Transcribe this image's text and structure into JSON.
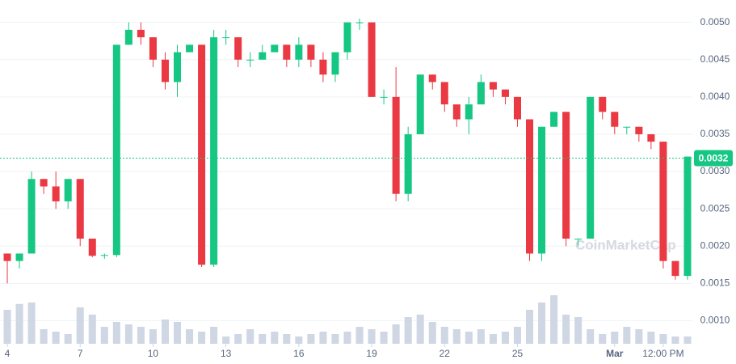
{
  "chart_data": {
    "type": "candlestick",
    "watermark": "CoinMarketCap",
    "up_color": "#16c784",
    "down_color": "#ea3943",
    "volume_color": "#cfd6e4",
    "grid": true,
    "x": [
      0,
      0.5,
      1,
      1.5,
      2,
      2.5,
      3,
      3.5,
      4,
      4.5,
      5,
      5.5,
      6,
      6.5,
      7,
      7.5,
      8,
      8.5,
      9,
      9.5,
      10,
      10.5,
      11,
      11.5,
      12,
      12.5,
      13,
      13.5,
      14,
      14.5,
      15,
      15.5,
      16,
      16.5,
      17,
      17.5,
      18,
      18.5,
      19,
      19.5,
      20,
      20.5,
      21,
      21.5,
      22,
      22.5,
      23,
      23.5,
      24,
      24.5,
      25,
      25.5,
      26,
      26.5,
      27,
      27.5,
      28
    ],
    "open": [
      0.0019,
      0.0018,
      0.0019,
      0.0029,
      0.0028,
      0.0026,
      0.0029,
      0.0021,
      0.00187,
      0.00188,
      0.0047,
      0.0049,
      0.0048,
      0.0045,
      0.0042,
      0.0046,
      0.0047,
      0.00175,
      0.0048,
      0.0048,
      0.0045,
      0.0045,
      0.0046,
      0.0047,
      0.0045,
      0.0047,
      0.0045,
      0.0043,
      0.0046,
      0.005,
      0.005,
      0.004,
      0.004,
      0.0027,
      0.0035,
      0.0043,
      0.0042,
      0.0039,
      0.0037,
      0.0039,
      0.0042,
      0.0041,
      0.004,
      0.0037,
      0.0019,
      0.0036,
      0.0038,
      0.0021,
      0.0021,
      0.004,
      0.0038,
      0.0036,
      0.0036,
      0.0035,
      0.0034,
      0.0018,
      0.0016
    ],
    "high": [
      0.0019,
      0.0019,
      0.003,
      0.0029,
      0.003,
      0.0029,
      0.0029,
      0.0021,
      0.0019,
      0.0047,
      0.005,
      0.005,
      0.0048,
      0.0046,
      0.0047,
      0.0047,
      0.0047,
      0.0049,
      0.0049,
      0.0048,
      0.0046,
      0.0047,
      0.0047,
      0.0047,
      0.0048,
      0.0047,
      0.0046,
      0.0046,
      0.005,
      0.00505,
      0.005,
      0.0041,
      0.0044,
      0.0036,
      0.0043,
      0.0043,
      0.0042,
      0.0039,
      0.004,
      0.0043,
      0.0042,
      0.0041,
      0.004,
      0.0037,
      0.0036,
      0.0038,
      0.0038,
      0.0021,
      0.004,
      0.004,
      0.0038,
      0.0036,
      0.0036,
      0.0035,
      0.0034,
      0.0018,
      0.0032
    ],
    "low": [
      0.0015,
      0.0017,
      0.0019,
      0.0027,
      0.0025,
      0.0025,
      0.002,
      0.00185,
      0.00183,
      0.00185,
      0.0047,
      0.0047,
      0.0044,
      0.0041,
      0.004,
      0.0046,
      0.00172,
      0.00172,
      0.0047,
      0.0044,
      0.0044,
      0.0045,
      0.0046,
      0.0044,
      0.0044,
      0.0044,
      0.0042,
      0.0042,
      0.0045,
      0.0049,
      0.004,
      0.0039,
      0.0026,
      0.0026,
      0.0035,
      0.0041,
      0.0038,
      0.0036,
      0.0035,
      0.0039,
      0.004,
      0.0039,
      0.0036,
      0.0018,
      0.0018,
      0.0036,
      0.002,
      0.002,
      0.0021,
      0.0037,
      0.0035,
      0.0035,
      0.0034,
      0.0033,
      0.0017,
      0.00155,
      0.00155
    ],
    "close": [
      0.0018,
      0.0019,
      0.0029,
      0.0028,
      0.0026,
      0.0029,
      0.0021,
      0.00187,
      0.00188,
      0.0047,
      0.0049,
      0.0048,
      0.0045,
      0.0042,
      0.0046,
      0.0047,
      0.00175,
      0.0048,
      0.0048,
      0.0045,
      0.0045,
      0.0046,
      0.0047,
      0.0045,
      0.0047,
      0.0045,
      0.0043,
      0.0046,
      0.005,
      0.005,
      0.004,
      0.004,
      0.0027,
      0.0035,
      0.0043,
      0.0042,
      0.0039,
      0.0037,
      0.0039,
      0.0042,
      0.0041,
      0.004,
      0.0037,
      0.0019,
      0.0036,
      0.0038,
      0.0021,
      0.0021,
      0.004,
      0.0038,
      0.0036,
      0.0036,
      0.0035,
      0.0034,
      0.0018,
      0.0016,
      0.0032
    ],
    "volume": [
      70,
      82,
      85,
      30,
      25,
      20,
      75,
      60,
      35,
      45,
      40,
      35,
      30,
      50,
      45,
      30,
      25,
      35,
      15,
      20,
      30,
      20,
      25,
      20,
      15,
      20,
      25,
      20,
      25,
      35,
      30,
      25,
      40,
      55,
      60,
      45,
      35,
      30,
      25,
      30,
      20,
      25,
      35,
      70,
      85,
      100,
      60,
      55,
      30,
      20,
      25,
      35,
      30,
      25,
      20,
      15,
      15
    ],
    "xlim": [
      -0.3,
      28.2
    ],
    "xticks": [
      {
        "value": 0,
        "label": "4"
      },
      {
        "value": 3,
        "label": "7"
      },
      {
        "value": 6,
        "label": "10"
      },
      {
        "value": 9,
        "label": "13"
      },
      {
        "value": 12,
        "label": "16"
      },
      {
        "value": 15,
        "label": "19"
      },
      {
        "value": 18,
        "label": "22"
      },
      {
        "value": 21,
        "label": "25"
      },
      {
        "value": 25,
        "label": "Mar"
      },
      {
        "value": 27,
        "label": "12:00 PM"
      }
    ],
    "ylim": [
      0.00069,
      0.0053
    ],
    "yticks": [
      {
        "value": 0.001,
        "label": "0.0010"
      },
      {
        "value": 0.0015,
        "label": "0.0015"
      },
      {
        "value": 0.002,
        "label": "0.0020"
      },
      {
        "value": 0.0025,
        "label": "0.0025"
      },
      {
        "value": 0.003,
        "label": "0.0030"
      },
      {
        "value": 0.0035,
        "label": "0.0035"
      },
      {
        "value": 0.004,
        "label": "0.0040"
      },
      {
        "value": 0.0045,
        "label": "0.0045"
      },
      {
        "value": 0.005,
        "label": "0.0050"
      }
    ],
    "last_price": {
      "value": 0.00318,
      "label": "0.0032"
    }
  }
}
